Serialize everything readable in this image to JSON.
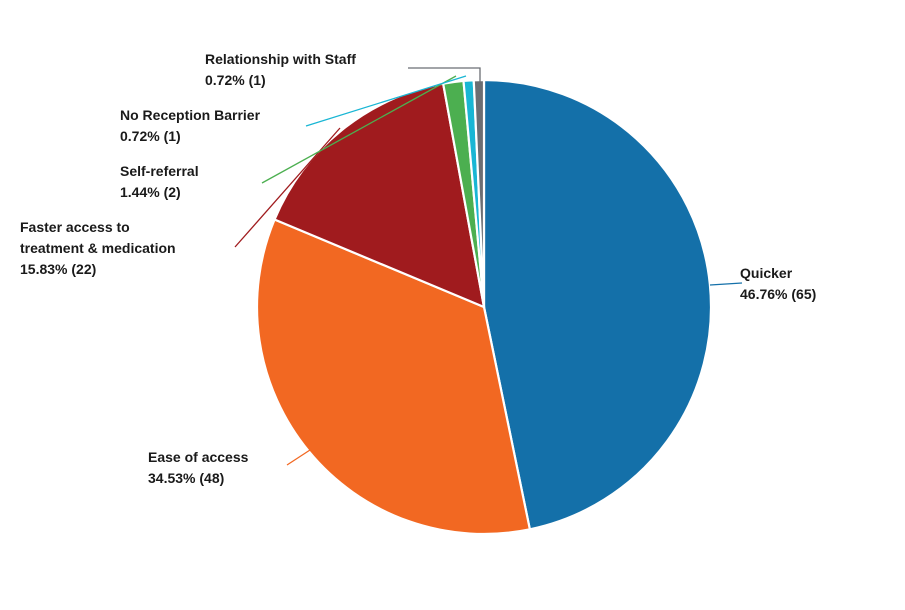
{
  "chart_data": {
    "type": "pie",
    "title": "",
    "slices": [
      {
        "label": "Quicker",
        "percent_label": "46.76% (65)",
        "value": 65,
        "color": "#1470a9"
      },
      {
        "label": "Ease of access",
        "percent_label": "34.53% (48)",
        "value": 48,
        "color": "#f26822"
      },
      {
        "label": "Faster access to treatment & medication",
        "percent_label": "15.83% (22)",
        "value": 22,
        "color": "#a01b1e"
      },
      {
        "label": "Self-referral",
        "percent_label": "1.44% (2)",
        "value": 2,
        "color": "#4caf50"
      },
      {
        "label": "No Reception Barrier",
        "percent_label": "0.72% (1)",
        "value": 1,
        "color": "#19b6d4"
      },
      {
        "label": "Relationship with Staff",
        "percent_label": "0.72% (1)",
        "value": 1,
        "color": "#6b6e73"
      }
    ],
    "label_lines": {
      "Faster access to treatment & medication": [
        "Faster access to",
        "treatment & medication"
      ]
    },
    "total": 139,
    "start_angle_deg": 0,
    "direction": "clockwise"
  }
}
